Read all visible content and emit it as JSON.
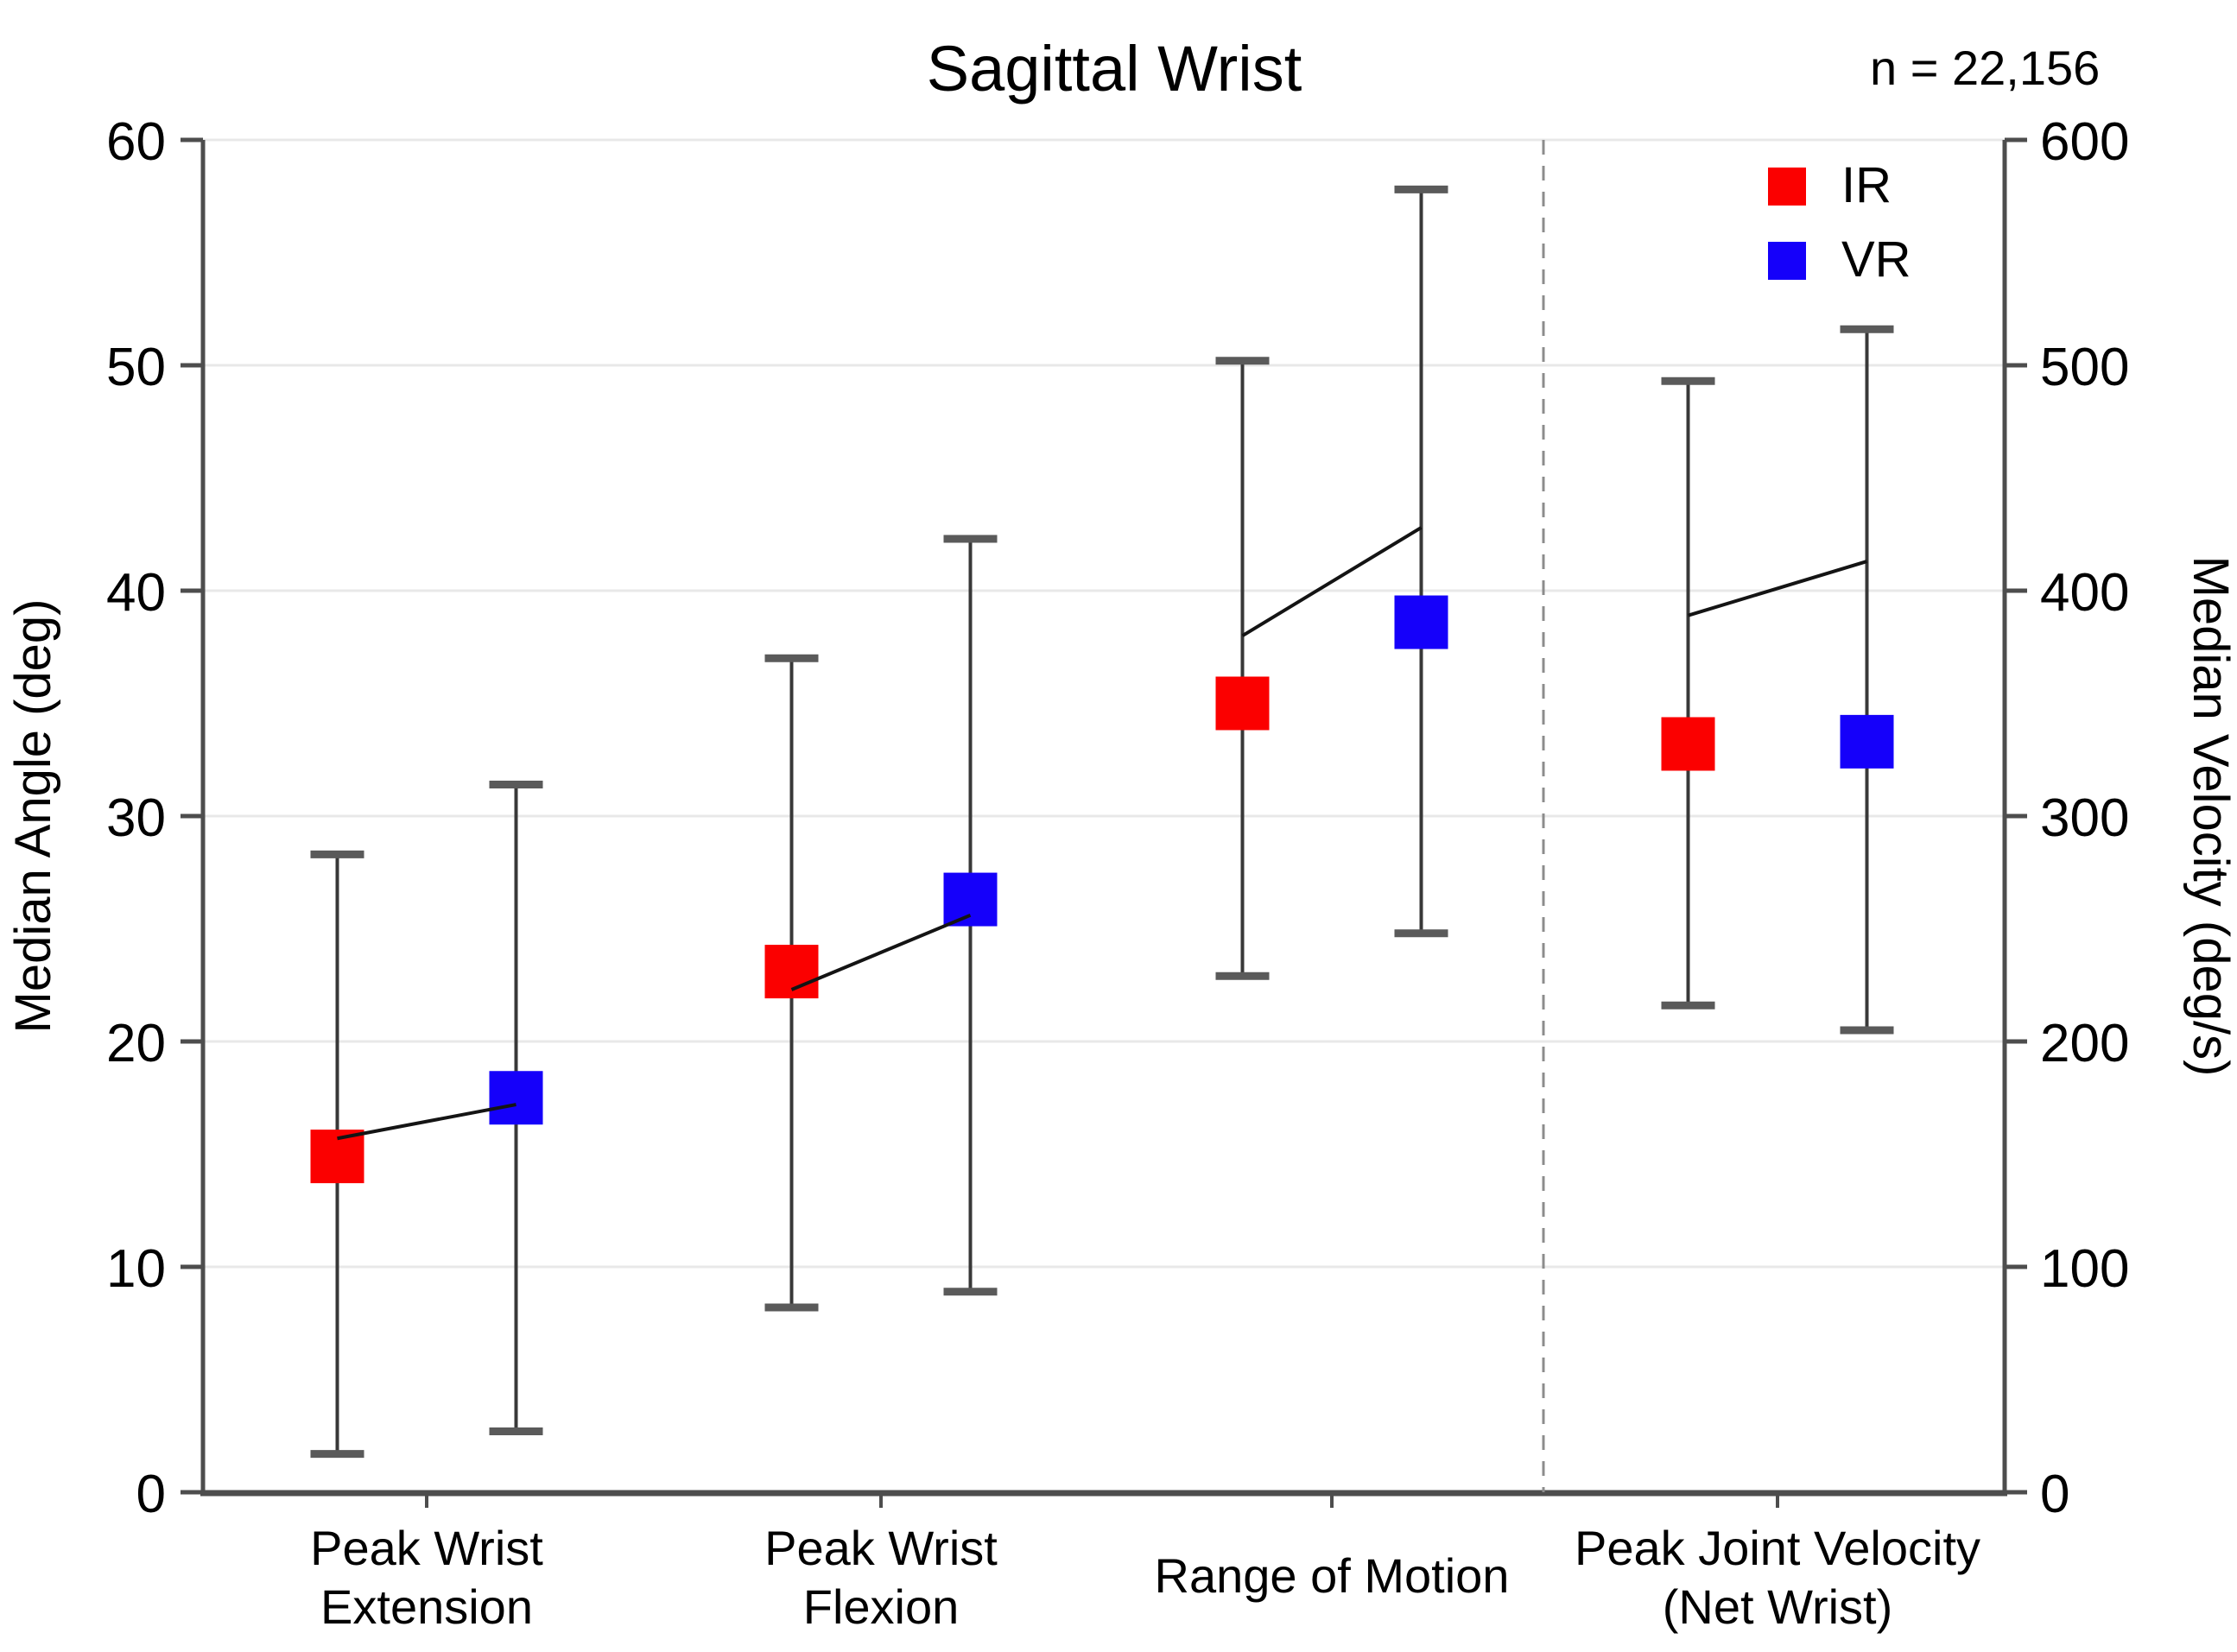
{
  "chart_data": {
    "type": "scatter",
    "title": "Sagittal Wrist",
    "annotation": "n = 22,156",
    "left_axis": {
      "label": "Median Angle (deg)",
      "min": 0,
      "max": 60,
      "tick_step": 10
    },
    "right_axis": {
      "label": "Median Velocity (deg/s)",
      "min": 0,
      "max": 600,
      "tick_step": 100
    },
    "legend": [
      {
        "name": "IR",
        "color": "#fb0000"
      },
      {
        "name": "VR",
        "color": "#1500fa"
      }
    ],
    "colors": {
      "annotation_red": "#e02830",
      "grid": "#e8e8e8",
      "axis": "#4d4d4d",
      "error_bar_line": "#383838",
      "error_bar_cap": "#5a5a5a",
      "mean_line": "#141414",
      "separator": "#8c8c8c"
    },
    "legend_position": "top-right",
    "grid": "horizontal-light",
    "categories": [
      {
        "label_lines": [
          "Peak Wrist",
          "Extension"
        ],
        "axis": "left",
        "IR": {
          "median": 14.9,
          "whisker_low": 1.7,
          "whisker_high": 28.3
        },
        "VR": {
          "median": 17.5,
          "whisker_low": 2.7,
          "whisker_high": 31.4
        },
        "mean_line": [
          15.7,
          17.2
        ]
      },
      {
        "label_lines": [
          "Peak Wrist",
          "Flexion"
        ],
        "axis": "left",
        "IR": {
          "median": 23.1,
          "whisker_low": 8.2,
          "whisker_high": 37.0
        },
        "VR": {
          "median": 26.3,
          "whisker_low": 8.9,
          "whisker_high": 42.3
        },
        "mean_line": [
          22.3,
          25.6
        ]
      },
      {
        "label_lines": [
          "Range of Motion"
        ],
        "axis": "left",
        "IR": {
          "median": 35.0,
          "whisker_low": 22.9,
          "whisker_high": 50.2
        },
        "VR": {
          "median": 38.6,
          "whisker_low": 24.8,
          "whisker_high": 57.8
        },
        "mean_line": [
          38.0,
          42.8
        ]
      },
      {
        "label_lines": [
          "Peak Joint Velocity",
          "(Net Wrist)"
        ],
        "axis": "right",
        "IR": {
          "median": 332,
          "whisker_low": 216,
          "whisker_high": 493
        },
        "VR": {
          "median": 333,
          "whisker_low": 205,
          "whisker_high": 516
        },
        "mean_line": [
          389,
          413
        ]
      }
    ],
    "separator_after_category_index": 2
  }
}
